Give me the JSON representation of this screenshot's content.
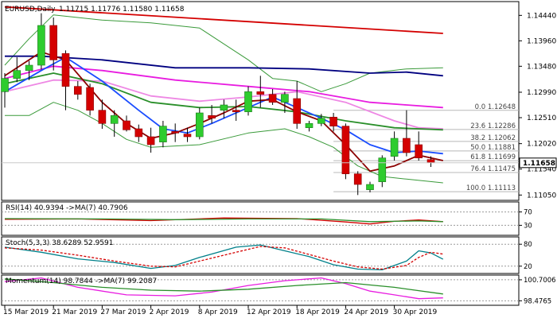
{
  "chart_data": {
    "type": "candlestick",
    "title": "EURUSD,Daily",
    "ohlc_text": "1.11715 1.11776 1.11580 1.11658",
    "current_price": 1.11658,
    "price_ylim": [
      1.1095,
      1.147
    ],
    "price_ticks": [
      1.1444,
      1.1396,
      1.1348,
      1.1299,
      1.1251,
      1.1202,
      1.1154,
      1.1105
    ],
    "price_tick_labels": [
      "1.14440",
      "1.13960",
      "1.13480",
      "1.12990",
      "1.12510",
      "1.12020",
      "1.11540",
      "1.11050"
    ],
    "current_price_label": "1.11658",
    "x_labels": [
      "15 Mar 2019",
      "21 Mar 2019",
      "27 Mar 2019",
      "2 Apr 2019",
      "8 Apr 2019",
      "12 Apr 2019",
      "18 Apr 2019",
      "24 Apr 2019",
      "30 Apr 2019"
    ],
    "x_label_index": [
      0,
      4,
      8,
      12,
      16,
      20,
      24,
      28,
      32
    ],
    "candles": [
      {
        "o": 1.13,
        "h": 1.1335,
        "l": 1.127,
        "c": 1.1325
      },
      {
        "o": 1.1325,
        "h": 1.1365,
        "l": 1.1318,
        "c": 1.134
      },
      {
        "o": 1.134,
        "h": 1.1358,
        "l": 1.1322,
        "c": 1.135
      },
      {
        "o": 1.135,
        "h": 1.1448,
        "l": 1.1342,
        "c": 1.1425
      },
      {
        "o": 1.1425,
        "h": 1.144,
        "l": 1.134,
        "c": 1.136
      },
      {
        "o": 1.1372,
        "h": 1.1378,
        "l": 1.1265,
        "c": 1.131
      },
      {
        "o": 1.131,
        "h": 1.132,
        "l": 1.1285,
        "c": 1.1295
      },
      {
        "o": 1.1308,
        "h": 1.1315,
        "l": 1.1255,
        "c": 1.1265
      },
      {
        "o": 1.1265,
        "h": 1.1285,
        "l": 1.123,
        "c": 1.124
      },
      {
        "o": 1.124,
        "h": 1.1265,
        "l": 1.1215,
        "c": 1.1255
      },
      {
        "o": 1.1245,
        "h": 1.1255,
        "l": 1.1225,
        "c": 1.1228
      },
      {
        "o": 1.123,
        "h": 1.1238,
        "l": 1.1205,
        "c": 1.1215
      },
      {
        "o": 1.1215,
        "h": 1.1232,
        "l": 1.1185,
        "c": 1.12
      },
      {
        "o": 1.1205,
        "h": 1.1245,
        "l": 1.1195,
        "c": 1.1235
      },
      {
        "o": 1.1225,
        "h": 1.124,
        "l": 1.1205,
        "c": 1.1222
      },
      {
        "o": 1.122,
        "h": 1.1232,
        "l": 1.1205,
        "c": 1.1215
      },
      {
        "o": 1.1215,
        "h": 1.127,
        "l": 1.121,
        "c": 1.126
      },
      {
        "o": 1.1255,
        "h": 1.1275,
        "l": 1.124,
        "c": 1.125
      },
      {
        "o": 1.1265,
        "h": 1.1285,
        "l": 1.125,
        "c": 1.1275
      },
      {
        "o": 1.1265,
        "h": 1.1285,
        "l": 1.1245,
        "c": 1.1262
      },
      {
        "o": 1.1262,
        "h": 1.131,
        "l": 1.1255,
        "c": 1.13
      },
      {
        "o": 1.13,
        "h": 1.133,
        "l": 1.127,
        "c": 1.1295
      },
      {
        "o": 1.1295,
        "h": 1.1305,
        "l": 1.1275,
        "c": 1.128
      },
      {
        "o": 1.128,
        "h": 1.13,
        "l": 1.126,
        "c": 1.1295
      },
      {
        "o": 1.1287,
        "h": 1.132,
        "l": 1.123,
        "c": 1.124
      },
      {
        "o": 1.1232,
        "h": 1.1245,
        "l": 1.1225,
        "c": 1.124
      },
      {
        "o": 1.124,
        "h": 1.1258,
        "l": 1.1235,
        "c": 1.125
      },
      {
        "o": 1.1252,
        "h": 1.126,
        "l": 1.1225,
        "c": 1.1235
      },
      {
        "o": 1.1235,
        "h": 1.124,
        "l": 1.1135,
        "c": 1.1145
      },
      {
        "o": 1.1145,
        "h": 1.115,
        "l": 1.1105,
        "c": 1.1125
      },
      {
        "o": 1.1115,
        "h": 1.113,
        "l": 1.111,
        "c": 1.1125
      },
      {
        "o": 1.113,
        "h": 1.118,
        "l": 1.112,
        "c": 1.1175
      },
      {
        "o": 1.1178,
        "h": 1.1225,
        "l": 1.117,
        "c": 1.1212
      },
      {
        "o": 1.1212,
        "h": 1.1265,
        "l": 1.1178,
        "c": 1.1185
      },
      {
        "o": 1.12,
        "h": 1.1225,
        "l": 1.117,
        "c": 1.1175
      },
      {
        "o": 1.1172,
        "h": 1.1178,
        "l": 1.1158,
        "c": 1.1166
      }
    ],
    "fibonacci": [
      {
        "label": "0.0 1.12648",
        "price": 1.12648
      },
      {
        "label": "23.6 1.12286",
        "price": 1.12286
      },
      {
        "label": "38.2 1.12062",
        "price": 1.12062
      },
      {
        "label": "50.0 1.11881",
        "price": 1.11881
      },
      {
        "label": "61.8 1.11699",
        "price": 1.11699
      },
      {
        "label": "76.4 1.11475",
        "price": 1.11475
      },
      {
        "label": "100.0 1.11113",
        "price": 1.11113
      }
    ],
    "overlays": [
      {
        "color": "#d40000",
        "values": [
          [
            0,
            1.146
          ],
          [
            36,
            1.141
          ]
        ]
      },
      {
        "color": "#000080",
        "values": [
          [
            0,
            1.1367
          ],
          [
            3,
            1.1367
          ],
          [
            8,
            1.136
          ],
          [
            14,
            1.1345
          ],
          [
            20,
            1.1345
          ],
          [
            25,
            1.1343
          ],
          [
            30,
            1.1335
          ],
          [
            33,
            1.1337
          ],
          [
            36,
            1.133
          ]
        ]
      },
      {
        "color": "#e81ce0",
        "values": [
          [
            0,
            1.1325
          ],
          [
            4,
            1.1348
          ],
          [
            8,
            1.134
          ],
          [
            14,
            1.1322
          ],
          [
            20,
            1.131
          ],
          [
            25,
            1.13
          ],
          [
            30,
            1.128
          ],
          [
            33,
            1.1275
          ],
          [
            36,
            1.127
          ]
        ]
      },
      {
        "color": "#ee88e4",
        "values": [
          [
            0,
            1.13
          ],
          [
            4,
            1.1322
          ],
          [
            8,
            1.132
          ],
          [
            12,
            1.1292
          ],
          [
            16,
            1.1282
          ],
          [
            20,
            1.129
          ],
          [
            24,
            1.13
          ],
          [
            28,
            1.128
          ],
          [
            32,
            1.1245
          ],
          [
            34,
            1.1232
          ],
          [
            36,
            1.123
          ]
        ]
      },
      {
        "color": "#2a8f2a",
        "values": [
          [
            0,
            1.1315
          ],
          [
            4,
            1.1335
          ],
          [
            8,
            1.1315
          ],
          [
            12,
            1.128
          ],
          [
            16,
            1.127
          ],
          [
            20,
            1.1272
          ],
          [
            24,
            1.1262
          ],
          [
            28,
            1.1245
          ],
          [
            32,
            1.1232
          ],
          [
            34,
            1.123
          ],
          [
            36,
            1.1228
          ]
        ]
      },
      {
        "color": "#1a4dff",
        "values": [
          [
            0,
            1.13
          ],
          [
            3,
            1.134
          ],
          [
            5,
            1.1365
          ],
          [
            8,
            1.132
          ],
          [
            11,
            1.1265
          ],
          [
            13,
            1.123
          ],
          [
            15,
            1.1222
          ],
          [
            17,
            1.124
          ],
          [
            20,
            1.127
          ],
          [
            22,
            1.129
          ],
          [
            24,
            1.127
          ],
          [
            26,
            1.125
          ],
          [
            28,
            1.1228
          ],
          [
            30,
            1.12
          ],
          [
            32,
            1.1185
          ],
          [
            34,
            1.1188
          ],
          [
            36,
            1.1183
          ]
        ]
      },
      {
        "color": "#8b0000",
        "values": [
          [
            0,
            1.133
          ],
          [
            3,
            1.1375
          ],
          [
            5,
            1.136
          ],
          [
            8,
            1.128
          ],
          [
            10,
            1.124
          ],
          [
            12,
            1.1212
          ],
          [
            14,
            1.1222
          ],
          [
            16,
            1.124
          ],
          [
            18,
            1.126
          ],
          [
            20,
            1.1282
          ],
          [
            22,
            1.1285
          ],
          [
            24,
            1.1262
          ],
          [
            26,
            1.1245
          ],
          [
            28,
            1.12
          ],
          [
            30,
            1.115
          ],
          [
            32,
            1.116
          ],
          [
            34,
            1.118
          ],
          [
            36,
            1.117
          ]
        ]
      }
    ],
    "bollinger": {
      "color": "#3a9a3a",
      "upper": [
        [
          0,
          1.135
        ],
        [
          2,
          1.14
        ],
        [
          4,
          1.1445
        ],
        [
          8,
          1.1435
        ],
        [
          12,
          1.143
        ],
        [
          16,
          1.142
        ],
        [
          18,
          1.139
        ],
        [
          20,
          1.136
        ],
        [
          22,
          1.1325
        ],
        [
          24,
          1.132
        ],
        [
          26,
          1.13
        ],
        [
          28,
          1.1315
        ],
        [
          30,
          1.1335
        ],
        [
          33,
          1.1343
        ],
        [
          36,
          1.1345
        ]
      ],
      "lower": [
        [
          0,
          1.1255
        ],
        [
          2,
          1.1255
        ],
        [
          4,
          1.128
        ],
        [
          6,
          1.1265
        ],
        [
          8,
          1.124
        ],
        [
          10,
          1.121
        ],
        [
          12,
          1.1195
        ],
        [
          16,
          1.12
        ],
        [
          20,
          1.1222
        ],
        [
          23,
          1.123
        ],
        [
          25,
          1.1215
        ],
        [
          27,
          1.1195
        ],
        [
          29,
          1.116
        ],
        [
          31,
          1.114
        ],
        [
          33,
          1.1135
        ],
        [
          36,
          1.1128
        ]
      ]
    },
    "indicators": [
      {
        "label": "RSI(14) 40.9394 ->MA(7) 40.7906",
        "ylim": [
          0,
          100
        ],
        "ticks": [
          {
            "v": 70,
            "label": "70"
          },
          {
            "v": 30,
            "label": "30"
          }
        ],
        "series": [
          {
            "color": "#d40000",
            "values": [
              [
                0,
                48
              ],
              [
                6,
                49
              ],
              [
                12,
                44
              ],
              [
                18,
                52
              ],
              [
                24,
                50
              ],
              [
                28,
                40
              ],
              [
                30,
                34
              ],
              [
                32,
                42
              ],
              [
                34,
                46
              ],
              [
                36,
                41
              ]
            ]
          },
          {
            "color": "#2a8f2a",
            "values": [
              [
                0,
                50
              ],
              [
                8,
                49
              ],
              [
                14,
                47
              ],
              [
                20,
                49
              ],
              [
                26,
                49
              ],
              [
                30,
                41
              ],
              [
                34,
                43
              ],
              [
                36,
                41
              ]
            ]
          }
        ]
      },
      {
        "label": "Stoch(5,3,3) 38.6289 52.9591",
        "ylim": [
          0,
          100
        ],
        "ticks": [
          {
            "v": 80,
            "label": "80"
          },
          {
            "v": 20,
            "label": "20"
          }
        ],
        "series": [
          {
            "color": "#00808a",
            "values": [
              [
                0,
                72
              ],
              [
                3,
                58
              ],
              [
                6,
                40
              ],
              [
                9,
                30
              ],
              [
                12,
                14
              ],
              [
                14,
                22
              ],
              [
                16,
                44
              ],
              [
                19,
                72
              ],
              [
                21,
                78
              ],
              [
                23,
                62
              ],
              [
                25,
                46
              ],
              [
                27,
                24
              ],
              [
                29,
                12
              ],
              [
                31,
                10
              ],
              [
                33,
                34
              ],
              [
                34,
                62
              ],
              [
                35,
                56
              ],
              [
                36,
                39
              ]
            ]
          },
          {
            "color": "#d40000",
            "dash": "3,2",
            "values": [
              [
                0,
                70
              ],
              [
                3,
                64
              ],
              [
                6,
                50
              ],
              [
                9,
                34
              ],
              [
                12,
                20
              ],
              [
                14,
                18
              ],
              [
                16,
                34
              ],
              [
                19,
                58
              ],
              [
                21,
                74
              ],
              [
                23,
                70
              ],
              [
                25,
                52
              ],
              [
                27,
                34
              ],
              [
                29,
                18
              ],
              [
                31,
                12
              ],
              [
                33,
                22
              ],
              [
                34,
                44
              ],
              [
                35,
                58
              ],
              [
                36,
                53
              ]
            ]
          }
        ]
      },
      {
        "label": "Momentum(14) 98.7844 ->MA(7) 99.2087",
        "ylim": [
          98.0,
          101.2
        ],
        "ticks": [
          {
            "v": 100.7006,
            "label": "100.7006"
          },
          {
            "v": 98.4765,
            "label": "98.4765"
          }
        ],
        "series": [
          {
            "color": "#e81ce0",
            "values": [
              [
                0,
                100.5
              ],
              [
                3,
                100.9
              ],
              [
                6,
                99.9
              ],
              [
                10,
                99.1
              ],
              [
                14,
                99.0
              ],
              [
                17,
                99.4
              ],
              [
                20,
                100.1
              ],
              [
                23,
                100.6
              ],
              [
                26,
                100.9
              ],
              [
                28,
                100.3
              ],
              [
                30,
                99.5
              ],
              [
                32,
                99.1
              ],
              [
                34,
                98.7
              ],
              [
                36,
                98.78
              ]
            ]
          },
          {
            "color": "#2a8f2a",
            "values": [
              [
                0,
                100.8
              ],
              [
                4,
                100.4
              ],
              [
                8,
                99.9
              ],
              [
                12,
                99.6
              ],
              [
                16,
                99.5
              ],
              [
                20,
                99.7
              ],
              [
                24,
                100.1
              ],
              [
                28,
                100.4
              ],
              [
                32,
                99.9
              ],
              [
                36,
                99.2
              ]
            ]
          }
        ]
      }
    ]
  }
}
